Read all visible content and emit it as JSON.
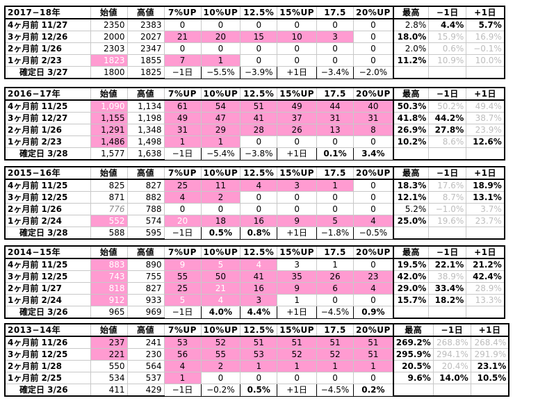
{
  "headers": [
    "始値",
    "高値",
    "7%UP",
    "10%UP",
    "12.5%",
    "15%UP",
    "17.5",
    "20%UP",
    "最高",
    "−1日",
    "+1日"
  ],
  "blocks": [
    {
      "year": "2017−18年",
      "rows": [
        {
          "label": "4ヶ月前 11/27",
          "open": "2350",
          "high": "2383",
          "p7": "0",
          "p10": "0",
          "p125": "0",
          "p15": "0",
          "p175": "0",
          "p20": "0",
          "max": "2.8%",
          "m1": "4.4%",
          "p1": "5.7%"
        },
        {
          "label": "3ヶ月前 12/26",
          "open": "2000",
          "high": "2027",
          "p7": "21",
          "p10": "20",
          "p125": "15",
          "p15": "10",
          "p175": "3",
          "p20": "0",
          "max": "18.0%",
          "m1": "15.9%",
          "p1": "16.9%"
        },
        {
          "label": "2ヶ月前 1/26",
          "open": "2303",
          "high": "2347",
          "p7": "0",
          "p10": "0",
          "p125": "0",
          "p15": "0",
          "p175": "0",
          "p20": "0",
          "max": "2.0%",
          "m1": "0.6%",
          "p1": "−0.1%"
        },
        {
          "label": "1ヶ月前 2/23",
          "open": "1823",
          "high": "1855",
          "p7": "7",
          "p10": "1",
          "p125": "0",
          "p15": "0",
          "p175": "0",
          "p20": "0",
          "max": "11.2%",
          "m1": "10.9%",
          "p1": "10.0%"
        },
        {
          "label": "確定日 3/27",
          "open": "1800",
          "high": "1825",
          "p7": "−1日",
          "p10": "−5.5%",
          "p125": "−3.9%",
          "p15": "+1日",
          "p175": "−3.4%",
          "p20": "−2.0%",
          "max": "",
          "m1": "",
          "p1": ""
        }
      ]
    },
    {
      "year": "2016−17年",
      "rows": [
        {
          "label": "4ヶ月前 11/25",
          "open": "1,090",
          "high": "1,134",
          "p7": "61",
          "p10": "54",
          "p125": "51",
          "p15": "49",
          "p175": "44",
          "p20": "40",
          "max": "50.3%",
          "m1": "50.2%",
          "p1": "49.4%"
        },
        {
          "label": "3ヶ月前 12/27",
          "open": "1,155",
          "high": "1,198",
          "p7": "49",
          "p10": "47",
          "p125": "41",
          "p15": "37",
          "p175": "31",
          "p20": "31",
          "max": "41.8%",
          "m1": "44.2%",
          "p1": "38.7%"
        },
        {
          "label": "2ヶ月前 1/26",
          "open": "1,291",
          "high": "1,348",
          "p7": "31",
          "p10": "29",
          "p125": "28",
          "p15": "26",
          "p175": "13",
          "p20": "8",
          "max": "26.9%",
          "m1": "27.8%",
          "p1": "23.9%"
        },
        {
          "label": "1ヶ月前 2/23",
          "open": "1,486",
          "high": "1,498",
          "p7": "1",
          "p10": "1",
          "p125": "0",
          "p15": "0",
          "p175": "0",
          "p20": "0",
          "max": "10.2%",
          "m1": "8.6%",
          "p1": "12.6%"
        },
        {
          "label": "確定日 3/28",
          "open": "1,577",
          "high": "1,638",
          "p7": "−1日",
          "p10": "−5.4%",
          "p125": "−3.8%",
          "p15": "+1日",
          "p175": "0.1%",
          "p20": "3.4%",
          "max": "",
          "m1": "",
          "p1": ""
        }
      ]
    },
    {
      "year": "2015−16年",
      "rows": [
        {
          "label": "4ヶ月前 11/25",
          "open": "825",
          "high": "827",
          "p7": "25",
          "p10": "11",
          "p125": "4",
          "p15": "3",
          "p175": "1",
          "p20": "0",
          "max": "18.3%",
          "m1": "17.6%",
          "p1": "18.9%"
        },
        {
          "label": "3ヶ月前 12/25",
          "open": "871",
          "high": "882",
          "p7": "4",
          "p10": "2",
          "p125": "0",
          "p15": "0",
          "p175": "0",
          "p20": "0",
          "max": "12.1%",
          "m1": "8.7%",
          "p1": "13.1%"
        },
        {
          "label": "2ヶ月前 1/26",
          "open": "776",
          "high": "788",
          "p7": "0",
          "p10": "0",
          "p125": "0",
          "p15": "0",
          "p175": "0",
          "p20": "0",
          "max": "5.2%",
          "m1": "−1.0%",
          "p1": "3.7%"
        },
        {
          "label": "1ヶ月前 2/24",
          "open": "552",
          "high": "574",
          "p7": "20",
          "p10": "18",
          "p125": "16",
          "p15": "9",
          "p175": "5",
          "p20": "4",
          "max": "25.0%",
          "m1": "19.6%",
          "p1": "23.7%"
        },
        {
          "label": "確定日 3/28",
          "open": "588",
          "high": "595",
          "p7": "−1日",
          "p10": "0.5%",
          "p125": "0.8%",
          "p15": "+1日",
          "p175": "−1.8%",
          "p20": "−0.5%",
          "max": "",
          "m1": "",
          "p1": ""
        }
      ]
    },
    {
      "year": "2014−15年",
      "rows": [
        {
          "label": "4ヶ月前 11/25",
          "open": "883",
          "high": "890",
          "p7": "9",
          "p10": "5",
          "p125": "4",
          "p15": "3",
          "p175": "1",
          "p20": "0",
          "max": "19.5%",
          "m1": "22.1%",
          "p1": "21.2%"
        },
        {
          "label": "3ヶ月前 12/25",
          "open": "743",
          "high": "755",
          "p7": "55",
          "p10": "50",
          "p125": "41",
          "p15": "35",
          "p175": "26",
          "p20": "23",
          "max": "42.0%",
          "m1": "38.9%",
          "p1": "42.4%"
        },
        {
          "label": "2ヶ月前 1/27",
          "open": "818",
          "high": "827",
          "p7": "25",
          "p10": "21",
          "p125": "16",
          "p15": "9",
          "p175": "6",
          "p20": "4",
          "max": "29.0%",
          "m1": "33.4%",
          "p1": "28.9%"
        },
        {
          "label": "1ヶ月前 2/24",
          "open": "912",
          "high": "933",
          "p7": "5",
          "p10": "4",
          "p125": "3",
          "p15": "1",
          "p175": "0",
          "p20": "0",
          "max": "15.7%",
          "m1": "18.2%",
          "p1": "13.3%"
        },
        {
          "label": "確定日 3/26",
          "open": "965",
          "high": "969",
          "p7": "−1日",
          "p10": "4.0%",
          "p125": "4.4%",
          "p15": "+1日",
          "p175": "−4.5%",
          "p20": "0.9%",
          "max": "",
          "m1": "",
          "p1": ""
        }
      ]
    },
    {
      "year": "2013−14年",
      "rows": [
        {
          "label": "4ヶ月前 11/26",
          "open": "237",
          "high": "241",
          "p7": "53",
          "p10": "52",
          "p125": "51",
          "p15": "51",
          "p175": "51",
          "p20": "51",
          "max": "269.2%",
          "m1": "268.8%",
          "p1": "268.4%"
        },
        {
          "label": "3ヶ月前 12/25",
          "open": "221",
          "high": "230",
          "p7": "56",
          "p10": "55",
          "p125": "53",
          "p15": "52",
          "p175": "52",
          "p20": "51",
          "max": "295.9%",
          "m1": "294.1%",
          "p1": "291.9%"
        },
        {
          "label": "2ヶ月前 1/28",
          "open": "550",
          "high": "564",
          "p7": "4",
          "p10": "2",
          "p125": "1",
          "p15": "1",
          "p175": "1",
          "p20": "1",
          "max": "20.5%",
          "m1": "20.4%",
          "p1": "23.1%"
        },
        {
          "label": "1ヶ月前 2/25",
          "open": "534",
          "high": "537",
          "p7": "1",
          "p10": "0",
          "p125": "0",
          "p15": "0",
          "p175": "0",
          "p20": "0",
          "max": "9.6%",
          "m1": "14.0%",
          "p1": "10.5%"
        },
        {
          "label": "確定日 3/26",
          "open": "411",
          "high": "429",
          "p7": "−1日",
          "p10": "−0.2%",
          "p125": "0.5%",
          "p15": "+1日",
          "p175": "−4.5%",
          "p20": "0.2%",
          "max": "",
          "m1": "",
          "p1": ""
        }
      ]
    }
  ]
}
